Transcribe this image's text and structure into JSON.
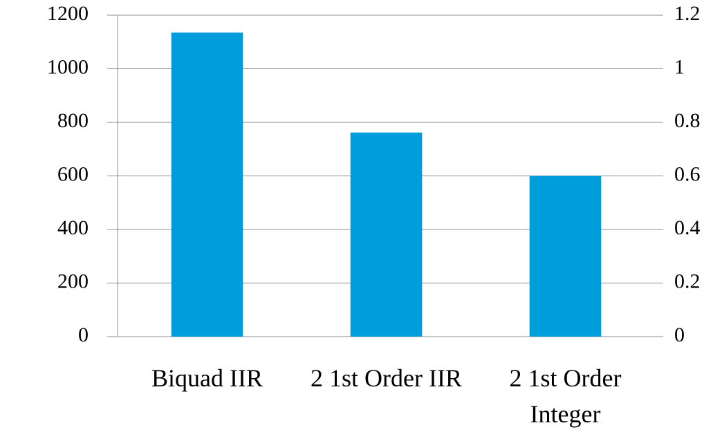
{
  "chart_data": {
    "type": "bar",
    "categories": [
      "Biquad IIR",
      "2 1st Order IIR",
      "2 1st Order Integer"
    ],
    "values": [
      1135,
      762,
      600
    ],
    "color": "#009ddc",
    "ylim": [
      0,
      1200
    ],
    "yticks": [
      0,
      200,
      400,
      600,
      800,
      1000,
      1200
    ],
    "y2lim": [
      0,
      1.2
    ],
    "y2ticks": [
      0,
      0.2,
      0.4,
      0.6,
      0.8,
      1,
      1.2
    ],
    "grid": true
  }
}
